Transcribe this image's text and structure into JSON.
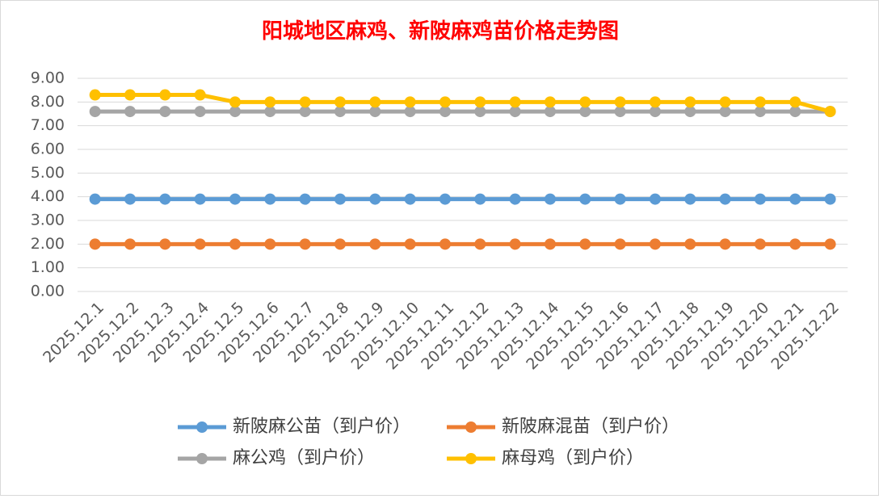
{
  "chart_data": {
    "type": "line",
    "title": "阳城地区麻鸡、新陂麻鸡苗价格走势图",
    "categories": [
      "2025.12.1",
      "2025.12.2",
      "2025.12.3",
      "2025.12.4",
      "2025.12.5",
      "2025.12.6",
      "2025.12.7",
      "2025.12.8",
      "2025.12.9",
      "2025.12.10",
      "2025.12.11",
      "2025.12.12",
      "2025.12.13",
      "2025.12.14",
      "2025.12.15",
      "2025.12.16",
      "2025.12.17",
      "2025.12.18",
      "2025.12.19",
      "2025.12.20",
      "2025.12.21",
      "2025.12.22"
    ],
    "series": [
      {
        "name": "新陂麻公苗（到户价）",
        "color": "#5b9bd5",
        "values": [
          3.9,
          3.9,
          3.9,
          3.9,
          3.9,
          3.9,
          3.9,
          3.9,
          3.9,
          3.9,
          3.9,
          3.9,
          3.9,
          3.9,
          3.9,
          3.9,
          3.9,
          3.9,
          3.9,
          3.9,
          3.9,
          3.9
        ]
      },
      {
        "name": "新陂麻混苗（到户价）",
        "color": "#ed7d31",
        "values": [
          2.0,
          2.0,
          2.0,
          2.0,
          2.0,
          2.0,
          2.0,
          2.0,
          2.0,
          2.0,
          2.0,
          2.0,
          2.0,
          2.0,
          2.0,
          2.0,
          2.0,
          2.0,
          2.0,
          2.0,
          2.0,
          2.0
        ]
      },
      {
        "name": "麻公鸡（到户价）",
        "color": "#a5a5a5",
        "values": [
          7.6,
          7.6,
          7.6,
          7.6,
          7.6,
          7.6,
          7.6,
          7.6,
          7.6,
          7.6,
          7.6,
          7.6,
          7.6,
          7.6,
          7.6,
          7.6,
          7.6,
          7.6,
          7.6,
          7.6,
          7.6,
          7.6
        ]
      },
      {
        "name": "麻母鸡（到户价）",
        "color": "#ffc000",
        "values": [
          8.3,
          8.3,
          8.3,
          8.3,
          8.0,
          8.0,
          8.0,
          8.0,
          8.0,
          8.0,
          8.0,
          8.0,
          8.0,
          8.0,
          8.0,
          8.0,
          8.0,
          8.0,
          8.0,
          8.0,
          8.0,
          7.6
        ]
      }
    ],
    "ylim": [
      0,
      9
    ],
    "yticks": [
      {
        "value": 0,
        "label": "0.00"
      },
      {
        "value": 1,
        "label": "1.00"
      },
      {
        "value": 2,
        "label": "2.00"
      },
      {
        "value": 3,
        "label": "3.00"
      },
      {
        "value": 4,
        "label": "4.00"
      },
      {
        "value": 5,
        "label": "5.00"
      },
      {
        "value": 6,
        "label": "6.00"
      },
      {
        "value": 7,
        "label": "7.00"
      },
      {
        "value": 8,
        "label": "8.00"
      },
      {
        "value": 9,
        "label": "9.00"
      }
    ],
    "grid": true
  }
}
